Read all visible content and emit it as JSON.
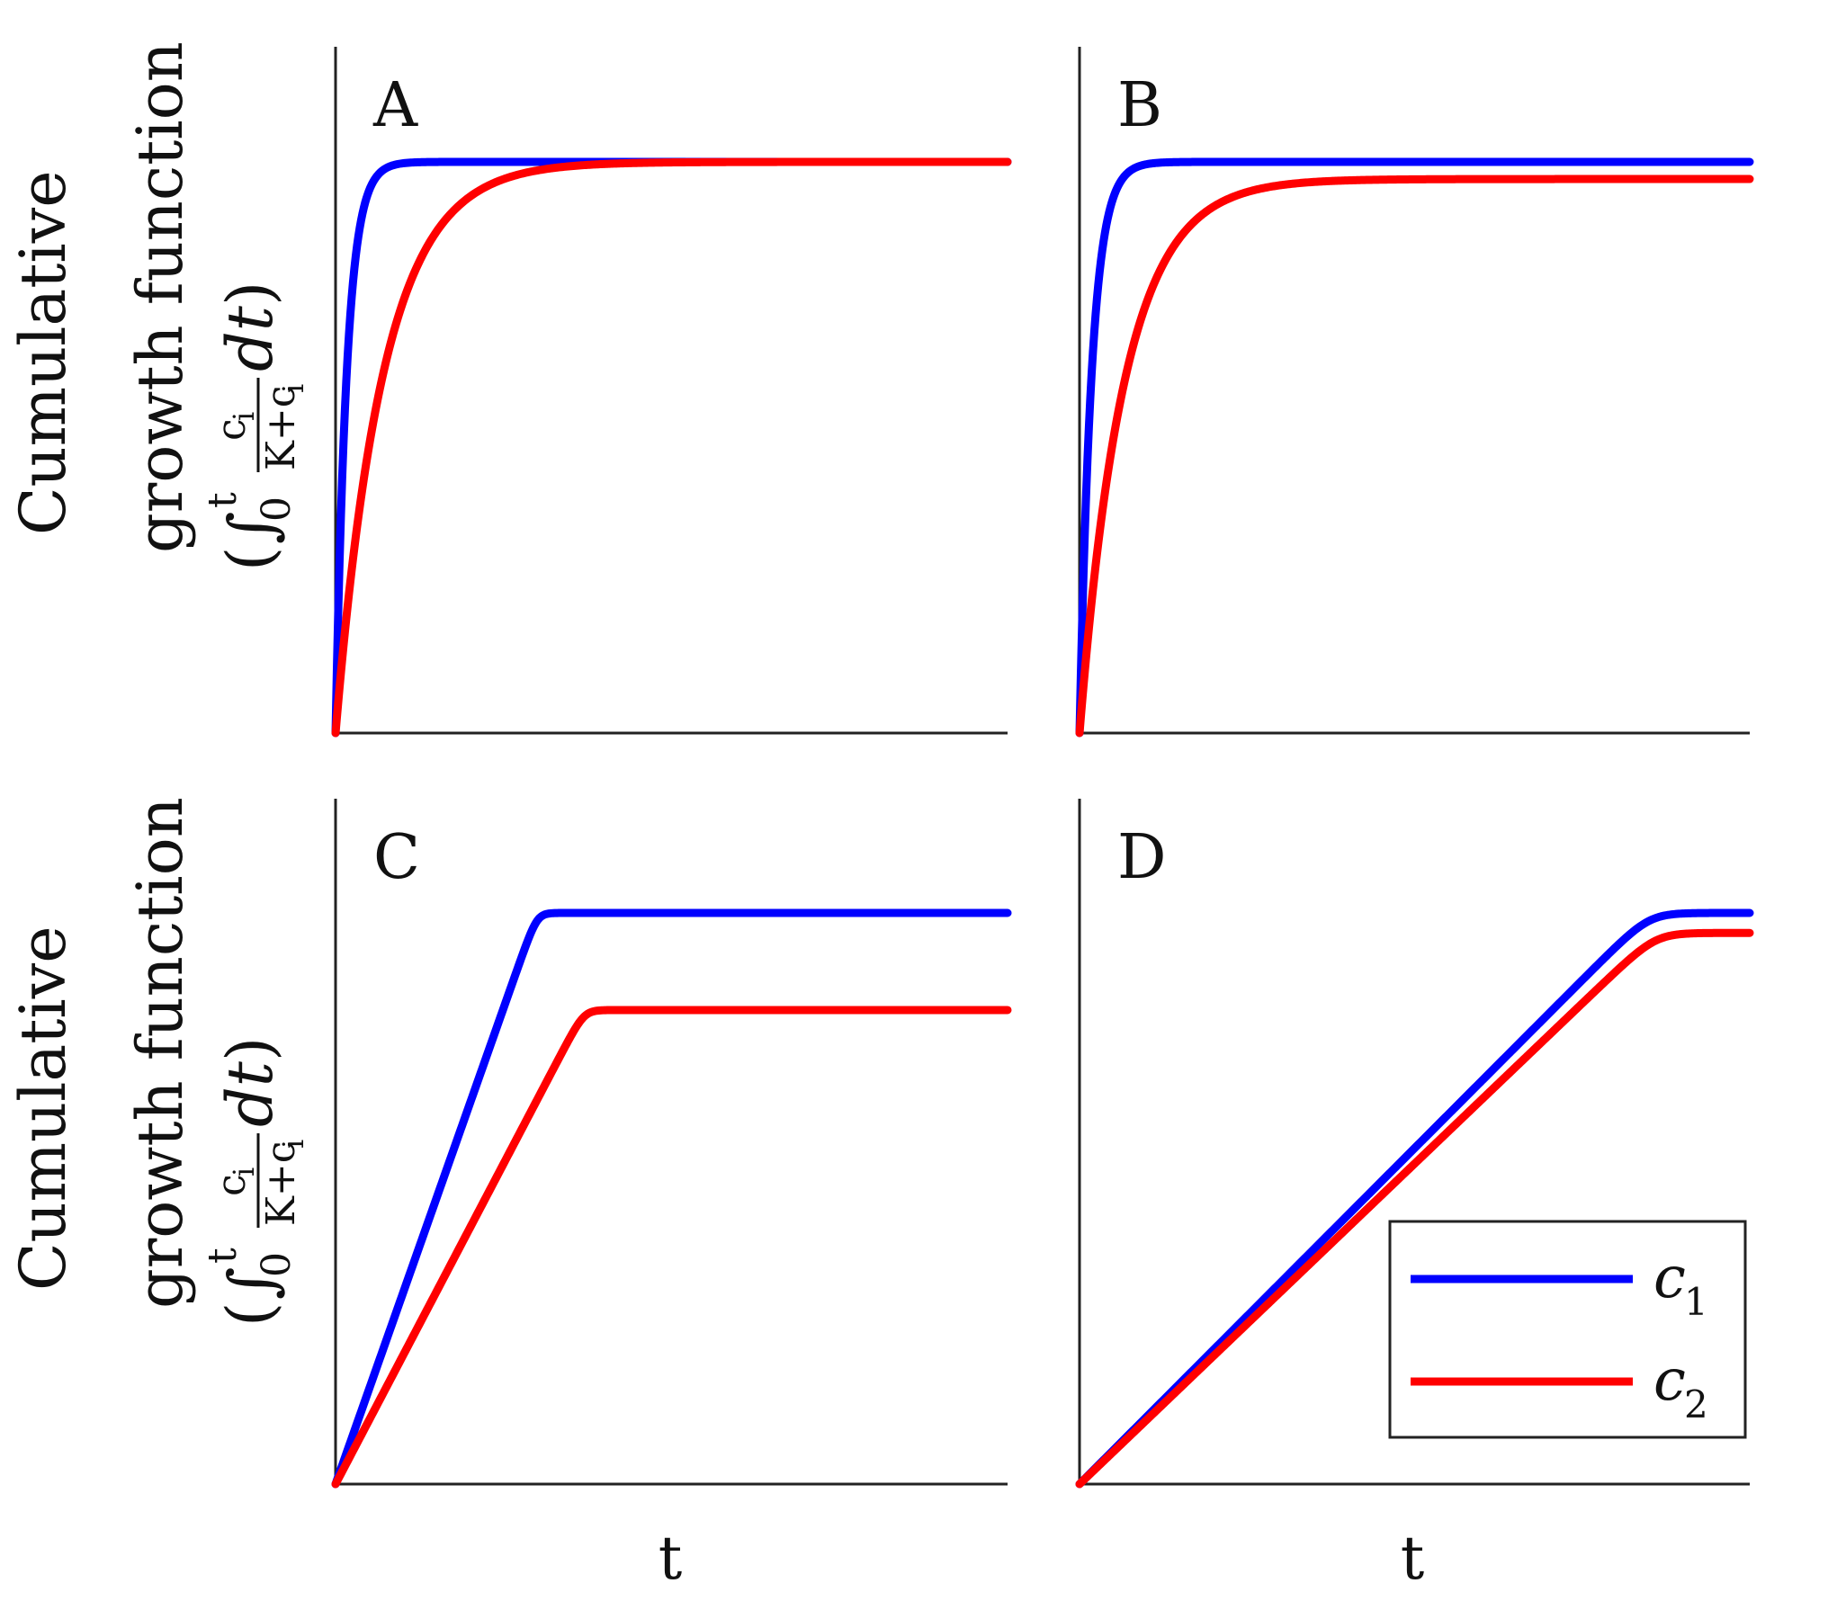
{
  "figure": {
    "ylabel_line1": "Cumulative",
    "ylabel_line2": "growth function",
    "ylabel_formula": {
      "open_paren": "(",
      "integral": "∫",
      "lower": "0",
      "upper": "t",
      "numerator": "c",
      "numerator_sub": "i",
      "denominator": "K+c",
      "denominator_sub": "i",
      "dt": "dt",
      "close_paren": ")"
    },
    "xlabel": "t",
    "colors": {
      "c1": "#0000ff",
      "c2": "#ff0000",
      "axis": "#222222"
    }
  },
  "legend": {
    "entries": [
      {
        "symbol": "c",
        "sub": "1",
        "series": "c1"
      },
      {
        "symbol": "c",
        "sub": "2",
        "series": "c2"
      }
    ]
  },
  "chart_data": [
    {
      "type": "line",
      "panel": "A",
      "title": "A",
      "xlabel": "",
      "ylabel": "Cumulative growth function",
      "xlim": [
        0,
        1
      ],
      "ylim": [
        0,
        1.2
      ],
      "series": [
        {
          "name": "c1",
          "model": "exp",
          "plateau": 1.0,
          "rate": 60,
          "sat_x": 0
        },
        {
          "name": "c2",
          "model": "exp",
          "plateau": 1.0,
          "rate": 14,
          "sat_x": 0
        }
      ]
    },
    {
      "type": "line",
      "panel": "B",
      "title": "B",
      "xlabel": "",
      "ylabel": "",
      "xlim": [
        0,
        1
      ],
      "ylim": [
        0,
        1.2
      ],
      "series": [
        {
          "name": "c1",
          "model": "exp",
          "plateau": 1.0,
          "rate": 55,
          "sat_x": 0
        },
        {
          "name": "c2",
          "model": "exp",
          "plateau": 0.97,
          "rate": 15,
          "sat_x": 0
        }
      ]
    },
    {
      "type": "line",
      "panel": "C",
      "title": "C",
      "xlabel": "t",
      "ylabel": "Cumulative growth function",
      "xlim": [
        0,
        1
      ],
      "ylim": [
        0,
        1.2
      ],
      "series": [
        {
          "name": "c1",
          "model": "linsat",
          "plateau": 1.0,
          "rate": 0,
          "sat_x": 0.3
        },
        {
          "name": "c2",
          "model": "linsat",
          "plateau": 0.83,
          "rate": 0,
          "sat_x": 0.37
        }
      ]
    },
    {
      "type": "line",
      "panel": "D",
      "title": "D",
      "xlabel": "t",
      "ylabel": "",
      "xlim": [
        0,
        1
      ],
      "ylim": [
        0,
        1.2
      ],
      "series": [
        {
          "name": "c1",
          "model": "linsat",
          "plateau": 1.0,
          "rate": 0,
          "sat_x": 0.85
        },
        {
          "name": "c2",
          "model": "linsat",
          "plateau": 0.965,
          "rate": 0,
          "sat_x": 0.86
        }
      ]
    }
  ]
}
